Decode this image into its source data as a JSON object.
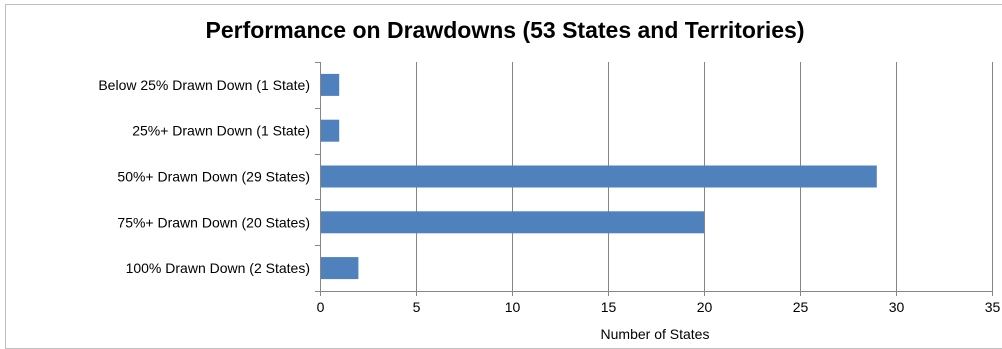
{
  "chart_data": {
    "type": "bar",
    "orientation": "horizontal",
    "title": "Performance on Drawdowns (53 States and Territories)",
    "categories": [
      "Below 25% Drawn Down (1 State)",
      "25%+ Drawn Down (1 State)",
      "50%+ Drawn Down (29 States)",
      "75%+ Drawn Down (20 States)",
      "100% Drawn Down (2 States)"
    ],
    "values": [
      1,
      1,
      29,
      20,
      2
    ],
    "xlabel": "Number of States",
    "ylabel": "",
    "xlim": [
      0,
      35
    ],
    "xticks": [
      "0",
      "5",
      "10",
      "15",
      "20",
      "25",
      "30",
      "35"
    ],
    "grid": "vertical",
    "legend": "none",
    "colors": {
      "bar": "#4f81bd",
      "grid": "#868686",
      "axis": "#868686"
    }
  }
}
